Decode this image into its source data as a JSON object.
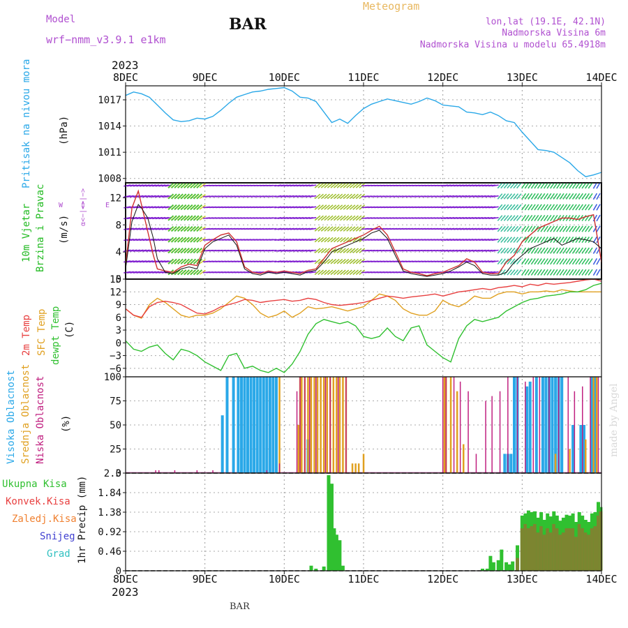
{
  "header": {
    "model_label": "Model",
    "model_name": "wrf−nmm_v3.9.1  e1km",
    "station": "BAR",
    "title": "Meteogram",
    "coords": "lon,lat (19.1E, 42.1N)",
    "elevation": "Nadmorska Visina 6m",
    "model_elevation": "Nadmorska Visina u modelu 65.4918m",
    "year_top": "2023",
    "year_bottom": "2023",
    "footer_station": "BAR",
    "watermark": "made by Angel"
  },
  "colors": {
    "pressure": "#2aa8e8",
    "wind_label": "#22bb22",
    "temp2m": "#e84040",
    "sfc": "#e0a020",
    "dew": "#30c030",
    "high_cloud": "#2aa8e8",
    "mid_cloud": "#e0a020",
    "low_cloud": "#c02080",
    "total_precip": "#30c030",
    "conv_precip": "#e84040",
    "frozen": "#f08030",
    "snow": "#4040d0",
    "graupel": "#30c0c0",
    "wind_purple": "#8020d0"
  },
  "x_axis": {
    "ticks": [
      "8DEC",
      "9DEC",
      "10DEC",
      "11DEC",
      "12DEC",
      "13DEC",
      "14DEC"
    ],
    "days": [
      0,
      1,
      2,
      3,
      4,
      5,
      6
    ]
  },
  "panels": {
    "pressure": {
      "labels": [
        "Pritisak na nivou mora"
      ],
      "unit": "(hPa)"
    },
    "wind": {
      "labels": [
        "10m Vjetar",
        "Brzina i Pravac"
      ],
      "unit": "(m/s)",
      "compass_w": "W",
      "compass_e": "E",
      "compass_n": "<−|−>",
      "compass_arrow": "α<−|−>"
    },
    "temp": {
      "labels": [
        "2m Temp",
        "SFC Temp",
        "dewpt Temp"
      ],
      "unit": "(C)"
    },
    "cloud": {
      "labels": [
        "Visoka Oblacnost",
        "Srednja Oblacnost",
        "Niska Oblacnost"
      ],
      "unit": "(%)"
    },
    "precip": {
      "legend": [
        "Ukupna Kisa",
        "Konvek.Kisa",
        "Zaledj.Kisa",
        "Snijeg",
        "Grad"
      ],
      "unit": "1hr Precip (mm)"
    }
  },
  "chart_data": [
    {
      "type": "line",
      "name": "pressure",
      "ylabel": "Pritisak na nivou mora (hPa)",
      "ylim": [
        1007.5,
        1018.6
      ],
      "yticks": [
        1008,
        1011,
        1014,
        1017
      ],
      "grid": true,
      "x": [
        0,
        0.1,
        0.2,
        0.3,
        0.4,
        0.5,
        0.6,
        0.7,
        0.8,
        0.9,
        1.0,
        1.1,
        1.2,
        1.3,
        1.4,
        1.5,
        1.6,
        1.7,
        1.8,
        1.9,
        2.0,
        2.1,
        2.2,
        2.3,
        2.4,
        2.5,
        2.6,
        2.7,
        2.8,
        2.9,
        3.0,
        3.1,
        3.2,
        3.3,
        3.4,
        3.5,
        3.6,
        3.7,
        3.8,
        3.9,
        4.0,
        4.1,
        4.2,
        4.3,
        4.4,
        4.5,
        4.6,
        4.7,
        4.8,
        4.9,
        5.0,
        5.1,
        5.2,
        5.3,
        5.4,
        5.5,
        5.6,
        5.7,
        5.8,
        5.9,
        6.0
      ],
      "series": [
        {
          "values": [
            1017.5,
            1017.9,
            1017.7,
            1017.3,
            1016.4,
            1015.5,
            1014.7,
            1014.5,
            1014.6,
            1014.9,
            1014.8,
            1015.1,
            1015.8,
            1016.6,
            1017.3,
            1017.6,
            1017.9,
            1018.0,
            1018.2,
            1018.3,
            1018.4,
            1018.0,
            1017.3,
            1017.2,
            1016.8,
            1015.6,
            1014.4,
            1014.8,
            1014.3,
            1015.2,
            1016.0,
            1016.5,
            1016.8,
            1017.1,
            1016.9,
            1016.7,
            1016.5,
            1016.8,
            1017.2,
            1016.9,
            1016.4,
            1016.3,
            1016.2,
            1015.6,
            1015.5,
            1015.3,
            1015.6,
            1015.2,
            1014.6,
            1014.4,
            1013.3,
            1012.3,
            1011.3,
            1011.2,
            1011.0,
            1010.4,
            1009.8,
            1008.9,
            1008.2,
            1008.4,
            1008.7
          ]
        }
      ]
    },
    {
      "type": "line",
      "name": "wind",
      "ylabel": "10m Vjetar Brzina i Pravac (m/s)",
      "ylim": [
        0,
        14.2
      ],
      "yticks": [
        0,
        4,
        8,
        12
      ],
      "grid": true,
      "x": [
        0,
        0.08,
        0.16,
        0.2,
        0.28,
        0.35,
        0.4,
        0.5,
        0.6,
        0.7,
        0.8,
        0.9,
        1.0,
        1.1,
        1.2,
        1.3,
        1.4,
        1.5,
        1.6,
        1.7,
        1.8,
        1.9,
        2.0,
        2.1,
        2.2,
        2.3,
        2.4,
        2.5,
        2.6,
        2.7,
        2.8,
        2.9,
        3.0,
        3.1,
        3.2,
        3.3,
        3.4,
        3.5,
        3.6,
        3.7,
        3.8,
        3.9,
        4.0,
        4.1,
        4.2,
        4.3,
        4.4,
        4.5,
        4.6,
        4.7,
        4.8,
        4.9,
        5.0,
        5.1,
        5.2,
        5.3,
        5.4,
        5.5,
        5.6,
        5.7,
        5.8,
        5.9,
        6.0
      ],
      "series": [
        {
          "name": "wind speed",
          "values": [
            2.0,
            10.5,
            13.0,
            11.0,
            7.0,
            3.5,
            1.5,
            1.2,
            1.0,
            1.8,
            2.2,
            2.0,
            5.0,
            5.8,
            6.5,
            6.8,
            5.5,
            1.8,
            1.0,
            0.8,
            1.2,
            1.0,
            1.2,
            1.0,
            0.8,
            1.3,
            1.5,
            3.0,
            4.5,
            5.0,
            5.5,
            6.0,
            6.5,
            7.2,
            7.8,
            6.5,
            4.0,
            1.5,
            1.0,
            0.8,
            0.5,
            0.8,
            1.0,
            1.5,
            2.0,
            3.0,
            2.5,
            1.0,
            0.8,
            0.8,
            2.5,
            3.5,
            5.5,
            6.5,
            7.5,
            8.0,
            8.5,
            9.0,
            9.0,
            8.8,
            9.2,
            9.5,
            2.5
          ]
        },
        {
          "name": "gust",
          "values": [
            1.5,
            8.5,
            11.0,
            10.5,
            9.0,
            6.0,
            3.0,
            1.0,
            0.8,
            1.5,
            1.8,
            1.5,
            4.5,
            5.5,
            6.0,
            6.5,
            5.0,
            1.5,
            0.8,
            0.6,
            1.0,
            0.8,
            1.0,
            0.8,
            0.6,
            1.1,
            1.3,
            2.5,
            4.0,
            4.5,
            5.0,
            5.5,
            6.0,
            6.8,
            7.2,
            6.0,
            3.5,
            1.2,
            0.8,
            0.6,
            0.4,
            0.6,
            0.8,
            1.2,
            1.8,
            2.5,
            2.0,
            0.8,
            0.6,
            0.6,
            1.0,
            2.5,
            3.5,
            4.5,
            5.0,
            5.5,
            6.0,
            5.0,
            5.5,
            6.0,
            5.8,
            5.5,
            4.5
          ]
        }
      ]
    },
    {
      "type": "line",
      "name": "temperature",
      "ylabel": "(C)",
      "ylim": [
        -8,
        15
      ],
      "yticks": [
        -6,
        -3,
        0,
        3,
        6,
        9,
        12,
        15
      ],
      "grid": true,
      "x": [
        0,
        0.1,
        0.2,
        0.3,
        0.4,
        0.5,
        0.6,
        0.7,
        0.8,
        0.9,
        1.0,
        1.1,
        1.2,
        1.3,
        1.4,
        1.5,
        1.6,
        1.7,
        1.8,
        1.9,
        2.0,
        2.1,
        2.2,
        2.3,
        2.4,
        2.5,
        2.6,
        2.7,
        2.8,
        2.9,
        3.0,
        3.1,
        3.2,
        3.3,
        3.4,
        3.5,
        3.6,
        3.7,
        3.8,
        3.9,
        4.0,
        4.1,
        4.2,
        4.3,
        4.4,
        4.5,
        4.6,
        4.7,
        4.8,
        4.9,
        5.0,
        5.1,
        5.2,
        5.3,
        5.4,
        5.5,
        5.6,
        5.7,
        5.8,
        5.9,
        6.0
      ],
      "series": [
        {
          "name": "2m Temp",
          "values": [
            8.0,
            6.5,
            6.0,
            8.5,
            9.5,
            9.8,
            9.5,
            9.0,
            8.0,
            7.0,
            6.8,
            7.5,
            8.5,
            9.0,
            9.5,
            10.2,
            10.0,
            9.5,
            9.8,
            10.0,
            10.2,
            9.8,
            10.0,
            10.5,
            10.2,
            9.5,
            9.0,
            8.8,
            9.0,
            9.2,
            9.5,
            10.0,
            10.5,
            11.0,
            10.8,
            10.5,
            10.8,
            11.0,
            11.2,
            11.5,
            11.0,
            11.5,
            12.0,
            12.2,
            12.5,
            12.8,
            12.5,
            13.0,
            13.2,
            13.5,
            13.2,
            13.8,
            13.5,
            14.0,
            13.8,
            14.0,
            14.2,
            14.5,
            14.8,
            15.0,
            14.5
          ]
        },
        {
          "name": "SFC Temp",
          "values": [
            8.0,
            6.5,
            5.8,
            9.0,
            10.5,
            9.5,
            8.0,
            6.5,
            6.0,
            6.5,
            6.5,
            7.0,
            8.0,
            9.5,
            11.0,
            10.5,
            9.0,
            7.0,
            6.0,
            6.5,
            7.5,
            6.0,
            7.0,
            8.5,
            8.0,
            8.2,
            8.5,
            8.0,
            7.5,
            8.0,
            8.5,
            10.0,
            11.5,
            11.0,
            10.0,
            8.0,
            7.0,
            6.5,
            6.5,
            7.5,
            10.0,
            9.0,
            8.5,
            9.5,
            11.0,
            10.5,
            10.5,
            11.5,
            12.0,
            12.0,
            11.5,
            12.0,
            12.0,
            12.2,
            12.0,
            12.5,
            12.2,
            12.0,
            12.0,
            12.0,
            12.0
          ]
        },
        {
          "name": "dewpt Temp",
          "values": [
            0.5,
            -1.5,
            -2.0,
            -1.0,
            -0.5,
            -2.5,
            -4.0,
            -1.5,
            -2.0,
            -3.0,
            -4.5,
            -5.5,
            -6.5,
            -3.0,
            -2.5,
            -6.0,
            -5.5,
            -6.5,
            -7.0,
            -6.0,
            -7.0,
            -5.0,
            -2.0,
            2.0,
            4.5,
            5.5,
            5.0,
            4.5,
            5.0,
            4.0,
            1.5,
            1.0,
            1.5,
            3.5,
            1.5,
            0.5,
            3.5,
            4.0,
            -0.5,
            -2.0,
            -3.5,
            -4.5,
            1.0,
            4.0,
            5.5,
            5.0,
            5.5,
            6.0,
            7.5,
            8.5,
            9.5,
            10.2,
            10.5,
            11.0,
            11.2,
            11.5,
            12.0,
            12.0,
            12.5,
            13.5,
            14.0
          ]
        }
      ]
    },
    {
      "type": "bar",
      "name": "cloud cover",
      "ylabel": "(%)",
      "ylim": [
        0,
        100
      ],
      "yticks": [
        0,
        25,
        50,
        75,
        100
      ],
      "grid": true,
      "series": [
        {
          "name": "Visoka Oblacnost",
          "x": [
            1.22,
            1.28,
            1.36,
            1.42,
            1.46,
            1.5,
            1.54,
            1.58,
            1.62,
            1.66,
            1.7,
            1.74,
            1.78,
            1.82,
            1.86,
            1.9,
            2.3,
            4.78,
            4.82,
            4.86,
            4.9,
            4.94,
            5.06,
            5.1,
            5.18,
            5.26,
            5.3,
            5.34,
            5.38,
            5.42,
            5.46,
            5.5,
            5.64,
            5.74,
            5.78,
            5.88,
            5.92
          ],
          "values": [
            60,
            100,
            100,
            100,
            100,
            100,
            100,
            100,
            100,
            100,
            100,
            100,
            100,
            100,
            100,
            100,
            35,
            20,
            20,
            20,
            100,
            100,
            90,
            95,
            100,
            100,
            100,
            100,
            100,
            100,
            100,
            100,
            50,
            50,
            50,
            100,
            100
          ]
        },
        {
          "name": "Srednja Oblacnost",
          "x": [
            1.94,
            2.18,
            2.2,
            2.22,
            2.26,
            2.3,
            2.34,
            2.38,
            2.42,
            2.46,
            2.5,
            2.54,
            2.58,
            2.62,
            2.66,
            2.7,
            2.74,
            2.78,
            2.86,
            2.9,
            2.94,
            3.0,
            4.02,
            4.04,
            4.1,
            4.18,
            4.26,
            5.42,
            5.6,
            5.8,
            5.9,
            5.94
          ],
          "values": [
            100,
            50,
            100,
            100,
            100,
            100,
            100,
            100,
            100,
            100,
            100,
            100,
            100,
            100,
            100,
            100,
            100,
            100,
            10,
            10,
            10,
            20,
            100,
            100,
            100,
            85,
            30,
            20,
            25,
            35,
            100,
            100
          ]
        },
        {
          "name": "Niska Oblacnost",
          "x": [
            0.38,
            0.42,
            0.62,
            0.9,
            1.1,
            1.78,
            1.94,
            2.16,
            2.2,
            2.26,
            2.32,
            2.4,
            2.52,
            2.58,
            2.68,
            2.78,
            4.0,
            4.04,
            4.14,
            4.22,
            4.32,
            4.42,
            4.54,
            4.62,
            4.72,
            4.82,
            4.94,
            5.04,
            5.14,
            5.22,
            5.34,
            5.46,
            5.58,
            5.66,
            5.76,
            5.86,
            5.96
          ],
          "values": [
            3,
            3,
            3,
            3,
            3,
            3,
            10,
            85,
            100,
            100,
            100,
            100,
            100,
            100,
            100,
            100,
            100,
            100,
            100,
            95,
            85,
            20,
            75,
            80,
            85,
            100,
            100,
            95,
            100,
            100,
            100,
            100,
            100,
            85,
            90,
            100,
            100
          ]
        }
      ]
    },
    {
      "type": "bar",
      "name": "1hr precipitation",
      "ylabel": "1hr Precip (mm)",
      "ylim": [
        0,
        2.3
      ],
      "yticks": [
        0,
        0.46,
        0.92,
        1.38,
        1.84,
        2.3
      ],
      "grid": true,
      "x": [
        2.34,
        2.4,
        2.5,
        2.56,
        2.6,
        2.63,
        2.66,
        2.7,
        2.74,
        4.5,
        4.56,
        4.6,
        4.64,
        4.7,
        4.74,
        4.8,
        4.84,
        4.88,
        4.94,
        5.0,
        5.04,
        5.08,
        5.12,
        5.16,
        5.2,
        5.24,
        5.28,
        5.32,
        5.36,
        5.4,
        5.44,
        5.48,
        5.52,
        5.56,
        5.6,
        5.64,
        5.68,
        5.72,
        5.76,
        5.8,
        5.84,
        5.88,
        5.92,
        5.96,
        5.99
      ],
      "series": [
        {
          "name": "Ukupna Kisa",
          "values": [
            0.12,
            0.05,
            0.1,
            2.25,
            2.05,
            1.0,
            0.85,
            0.72,
            0.12,
            0.05,
            0.05,
            0.35,
            0.2,
            0.25,
            0.5,
            0.2,
            0.15,
            0.22,
            0.6,
            1.3,
            1.35,
            1.42,
            1.38,
            1.4,
            1.25,
            1.38,
            1.2,
            1.35,
            1.28,
            1.4,
            1.3,
            1.18,
            1.25,
            1.32,
            1.3,
            1.35,
            1.15,
            1.38,
            1.3,
            1.2,
            1.15,
            1.35,
            1.38,
            1.62,
            1.5
          ]
        },
        {
          "name": "Konvek.Kisa",
          "values": [
            0,
            0,
            0,
            0,
            0,
            0,
            0,
            0,
            0,
            0,
            0,
            0,
            0,
            0,
            0,
            0,
            0,
            0,
            0.3,
            1.0,
            1.1,
            1.0,
            1.05,
            1.1,
            0.9,
            1.05,
            0.85,
            1.0,
            0.9,
            1.1,
            1.0,
            0.85,
            0.9,
            1.0,
            1.0,
            1.0,
            0.8,
            1.1,
            1.0,
            0.9,
            0.85,
            1.0,
            1.05,
            1.3,
            1.4
          ]
        }
      ]
    }
  ]
}
